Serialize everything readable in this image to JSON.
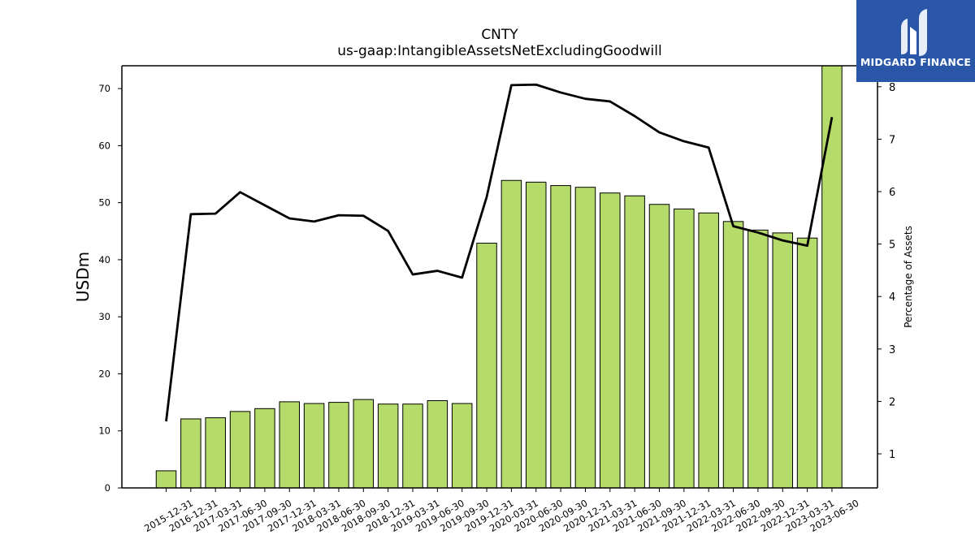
{
  "brand": {
    "name": "MIDGARD FINANCE",
    "background": "#2a56a8"
  },
  "chart_data": {
    "type": "bar+line",
    "title": "CNTY",
    "subtitle": "us-gaap:IntangibleAssetsNetExcludingGoodwill",
    "ylabel": "USDm",
    "y2label": "Percentage of Assets",
    "ylim": [
      0,
      74
    ],
    "y2lim": [
      0.35,
      8.4
    ],
    "yticks": [
      0,
      10,
      20,
      30,
      40,
      50,
      60,
      70
    ],
    "y2ticks": [
      1,
      2,
      3,
      4,
      5,
      6,
      7,
      8
    ],
    "bar_color": "#b5dc6a",
    "line_color": "#000000",
    "grid": false,
    "categories": [
      "2015-12-31",
      "2016-12-31",
      "2017-03-31",
      "2017-06-30",
      "2017-09-30",
      "2017-12-31",
      "2018-03-31",
      "2018-06-30",
      "2018-09-30",
      "2018-12-31",
      "2019-03-31",
      "2019-06-30",
      "2019-09-30",
      "2019-12-31",
      "2020-03-31",
      "2020-06-30",
      "2020-09-30",
      "2020-12-31",
      "2021-03-31",
      "2021-06-30",
      "2021-09-30",
      "2021-12-31",
      "2022-03-31",
      "2022-06-30",
      "2022-09-30",
      "2022-12-31",
      "2023-03-31",
      "2023-06-30"
    ],
    "series": [
      {
        "type": "bar",
        "axis": "left",
        "values": [
          3.0,
          12.1,
          12.3,
          13.4,
          13.9,
          15.1,
          14.8,
          15.0,
          15.5,
          14.7,
          14.7,
          15.3,
          14.8,
          42.9,
          53.9,
          53.6,
          53.0,
          52.7,
          51.7,
          51.2,
          49.7,
          48.9,
          48.2,
          46.7,
          45.2,
          44.7,
          43.8,
          74.0
        ]
      },
      {
        "type": "line",
        "axis": "right",
        "values": [
          1.62,
          5.57,
          5.58,
          5.99,
          5.74,
          5.49,
          5.43,
          5.55,
          5.54,
          5.25,
          4.42,
          4.49,
          4.36,
          5.9,
          8.03,
          8.04,
          7.89,
          7.77,
          7.72,
          7.44,
          7.13,
          6.96,
          6.84,
          5.34,
          5.22,
          5.07,
          4.97,
          7.42
        ]
      }
    ]
  }
}
